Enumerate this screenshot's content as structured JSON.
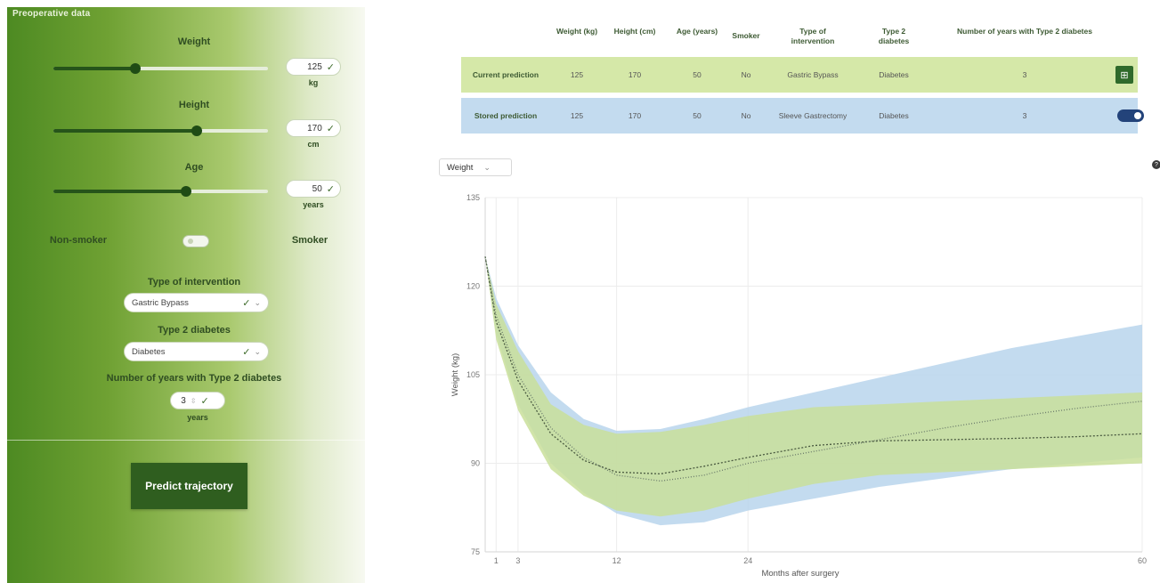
{
  "sidebar": {
    "header": "Preoperative data",
    "weight": {
      "label": "Weight",
      "value": "125",
      "unit": "kg",
      "slider_fraction": 0.38
    },
    "height": {
      "label": "Height",
      "value": "170",
      "unit": "cm",
      "slider_fraction": 0.67
    },
    "age": {
      "label": "Age",
      "value": "50",
      "unit": "years",
      "slider_fraction": 0.62
    },
    "smoker": {
      "left_label": "Non-smoker",
      "right_label": "Smoker"
    },
    "intervention": {
      "label": "Type of intervention",
      "value": "Gastric Bypass"
    },
    "diabetes": {
      "label": "Type 2 diabetes",
      "value": "Diabetes"
    },
    "diabetes_years": {
      "label": "Number of years with Type 2 diabetes",
      "value": "3",
      "unit": "years"
    },
    "predict_button": "Predict trajectory"
  },
  "table": {
    "headers": [
      "Weight (kg)",
      "Height (cm)",
      "Age (years)",
      "Smoker",
      "Type of intervention",
      "Type 2 diabetes",
      "Number of years with Type 2 diabetes"
    ],
    "rows": [
      {
        "label": "Current prediction",
        "cells": [
          "125",
          "170",
          "50",
          "No",
          "Gastric Bypass",
          "Diabetes",
          "3"
        ]
      },
      {
        "label": "Stored prediction",
        "cells": [
          "125",
          "170",
          "50",
          "No",
          "Sleeve Gastrectomy",
          "Diabetes",
          "3"
        ]
      }
    ]
  },
  "metric_select": "Weight",
  "colors": {
    "current": "#c9df9a",
    "stored": "#b8d5ec",
    "accent": "#2f5e1f"
  },
  "chart_data": {
    "type": "line",
    "xlabel": "Months after surgery",
    "ylabel": "Weight (kg)",
    "xlim": [
      0,
      60
    ],
    "ylim": [
      75,
      135
    ],
    "x_ticks": [
      1,
      3,
      12,
      24,
      60
    ],
    "y_ticks": [
      75,
      90,
      105,
      120,
      135
    ],
    "grid": true,
    "series": [
      {
        "x": [
          0,
          1,
          3,
          6,
          9,
          12,
          16,
          20,
          24,
          30,
          36,
          42,
          48,
          54,
          60
        ],
        "y": [
          125,
          114,
          104,
          95,
          90.5,
          88.5,
          88.2,
          89.5,
          91,
          93,
          93.8,
          94,
          94.2,
          94.5,
          95
        ],
        "lower": [
          125,
          111,
          99,
          89,
          84.5,
          82,
          81,
          82,
          84,
          86.5,
          88,
          88.5,
          89,
          89.5,
          90
        ],
        "upper": [
          125,
          117,
          109,
          100,
          96.5,
          95,
          95.3,
          96.5,
          98,
          99.5,
          100,
          100.5,
          101,
          101.5,
          102
        ]
      },
      {
        "x": [
          0,
          1,
          3,
          6,
          9,
          12,
          16,
          20,
          24,
          30,
          36,
          42,
          48,
          54,
          60
        ],
        "y": [
          125,
          115,
          105,
          96,
          91,
          88,
          87,
          88,
          90,
          92,
          94,
          96,
          97.8,
          99.3,
          100.5
        ],
        "lower": [
          125,
          112,
          100,
          90,
          85,
          81.5,
          79.5,
          80,
          82,
          84,
          86,
          87.5,
          89,
          90,
          91
        ],
        "upper": [
          125,
          118,
          110,
          102,
          97.5,
          95.5,
          95.8,
          97.5,
          99.5,
          102,
          104.5,
          107,
          109.5,
          111.5,
          113.5
        ]
      }
    ]
  }
}
